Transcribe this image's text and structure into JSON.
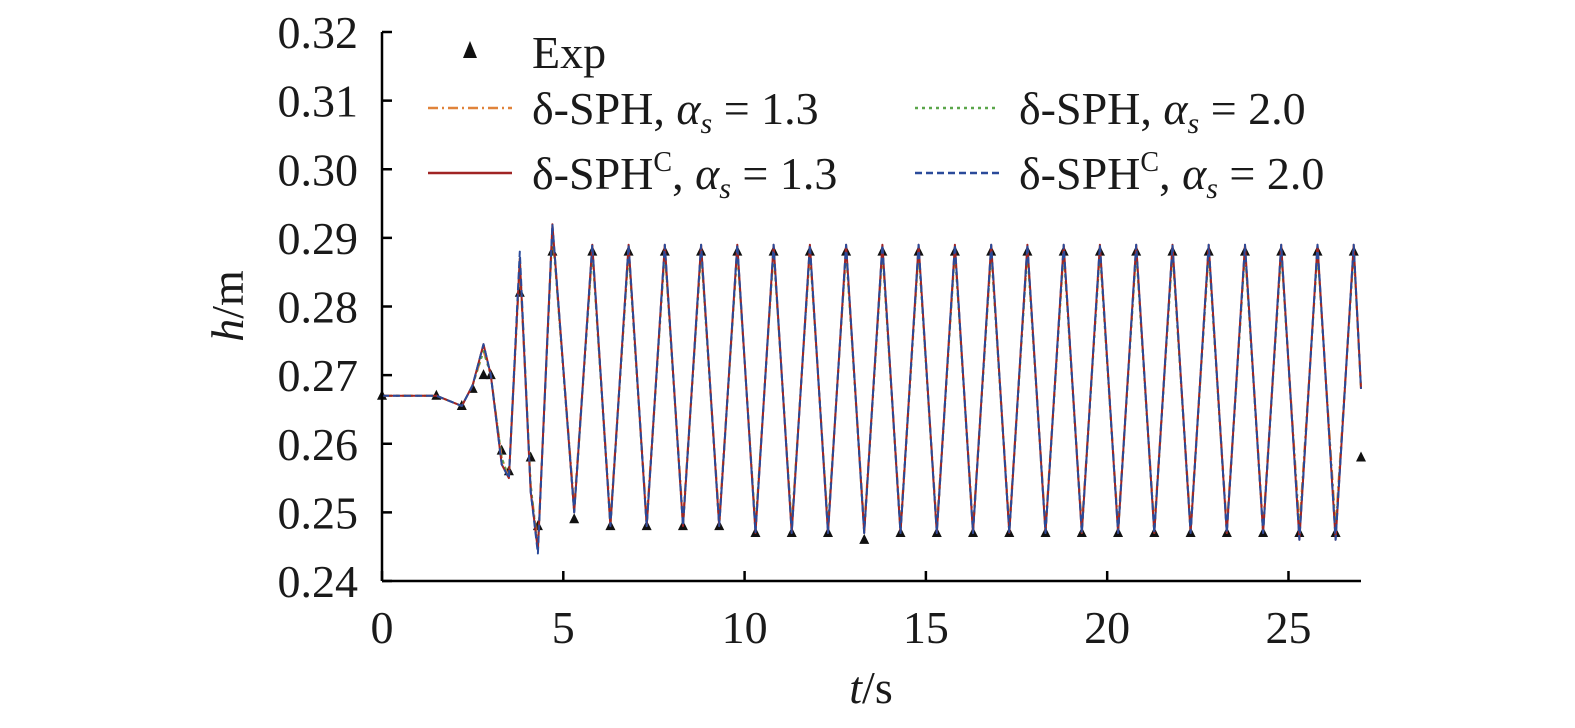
{
  "chart_data": {
    "type": "line",
    "title": "",
    "xlabel": {
      "var": "t",
      "unit": "/s"
    },
    "ylabel": {
      "var": "h",
      "unit": "/m"
    },
    "xlim": [
      0,
      27
    ],
    "ylim": [
      0.24,
      0.32
    ],
    "x_ticks": [
      0,
      5,
      10,
      15,
      20,
      25
    ],
    "x_tick_labels": [
      "0",
      "5",
      "10",
      "15",
      "20",
      "25"
    ],
    "y_ticks": [
      0.24,
      0.25,
      0.26,
      0.27,
      0.28,
      0.29,
      0.3,
      0.31,
      0.32
    ],
    "y_tick_labels": [
      "0.24",
      "0.25",
      "0.26",
      "0.27",
      "0.28",
      "0.29",
      "0.30",
      "0.31",
      "0.32"
    ],
    "grid": false,
    "legend_position": "top",
    "legend": [
      {
        "base": "Exp",
        "sup": "",
        "alpha": "",
        "eq": "",
        "style": "triangle",
        "color": "#111111"
      },
      {
        "base": "δ-SPH",
        "sup": "",
        "alpha": "α",
        "eq": " = 1.3",
        "style": "dashdot",
        "color": "#e0833a"
      },
      {
        "base": "δ-SPH",
        "sup": "",
        "alpha": "α",
        "eq": " = 2.0",
        "style": "dotted",
        "color": "#5aa64a"
      },
      {
        "base": "δ-SPH",
        "sup": "C",
        "alpha": "α",
        "eq": " = 1.3",
        "style": "solid",
        "color": "#a02424"
      },
      {
        "base": "δ-SPH",
        "sup": "C",
        "alpha": "α",
        "eq": " = 2.0",
        "style": "dashed",
        "color": "#2a4a9a"
      }
    ],
    "alpha_subscript": "s",
    "series": [
      {
        "name": "Exp",
        "marker": "triangle",
        "color": "#111111",
        "x": [
          0,
          1.5,
          2.2,
          2.5,
          2.8,
          3.0,
          3.3,
          3.5,
          3.8,
          4.1,
          4.3,
          4.7,
          5.3,
          5.8,
          6.3,
          6.8,
          7.3,
          7.8,
          8.3,
          8.8,
          9.3,
          9.8,
          10.3,
          10.8,
          11.3,
          11.8,
          12.3,
          12.8,
          13.3,
          13.8,
          14.3,
          14.8,
          15.3,
          15.8,
          16.3,
          16.8,
          17.3,
          17.8,
          18.3,
          18.8,
          19.3,
          19.8,
          20.3,
          20.8,
          21.3,
          21.8,
          22.3,
          22.8,
          23.3,
          23.8,
          24.3,
          24.8,
          25.3,
          25.8,
          26.3,
          26.8,
          27.0
        ],
        "y": [
          0.267,
          0.267,
          0.2655,
          0.268,
          0.27,
          0.27,
          0.259,
          0.256,
          0.282,
          0.258,
          0.248,
          0.288,
          0.249,
          0.288,
          0.248,
          0.288,
          0.248,
          0.288,
          0.248,
          0.288,
          0.248,
          0.288,
          0.247,
          0.288,
          0.247,
          0.288,
          0.247,
          0.288,
          0.246,
          0.288,
          0.247,
          0.288,
          0.247,
          0.288,
          0.247,
          0.288,
          0.247,
          0.288,
          0.247,
          0.288,
          0.247,
          0.288,
          0.247,
          0.288,
          0.247,
          0.288,
          0.247,
          0.288,
          0.247,
          0.288,
          0.247,
          0.288,
          0.247,
          0.288,
          0.247,
          0.288,
          0.258
        ]
      },
      {
        "name": "δ-SPH, α_s = 1.3",
        "line": "dashdot",
        "color": "#e0833a",
        "x": [
          0,
          1.5,
          2.2,
          2.5,
          2.8,
          3.0,
          3.3,
          3.5,
          3.8,
          4.1,
          4.3,
          4.7,
          5.3,
          5.8,
          6.3,
          6.8,
          7.3,
          7.8,
          8.3,
          8.8,
          9.3,
          9.8,
          10.3,
          10.8,
          11.3,
          11.8,
          12.3,
          12.8,
          13.3,
          13.8,
          14.3,
          14.8,
          15.3,
          15.8,
          16.3,
          16.8,
          17.3,
          17.8,
          18.3,
          18.8,
          19.3,
          19.8,
          20.3,
          20.8,
          21.3,
          21.8,
          22.3,
          22.8,
          23.3,
          23.8,
          24.3,
          24.8,
          25.3,
          25.8,
          26.3,
          26.8,
          27.0
        ],
        "y": [
          0.267,
          0.267,
          0.2655,
          0.2685,
          0.2735,
          0.27,
          0.258,
          0.255,
          0.286,
          0.254,
          0.245,
          0.291,
          0.251,
          0.288,
          0.249,
          0.288,
          0.249,
          0.288,
          0.249,
          0.288,
          0.249,
          0.288,
          0.248,
          0.288,
          0.248,
          0.288,
          0.248,
          0.288,
          0.248,
          0.288,
          0.248,
          0.288,
          0.248,
          0.288,
          0.248,
          0.288,
          0.248,
          0.288,
          0.248,
          0.288,
          0.248,
          0.288,
          0.248,
          0.288,
          0.248,
          0.288,
          0.248,
          0.288,
          0.248,
          0.288,
          0.248,
          0.288,
          0.248,
          0.288,
          0.248,
          0.288,
          0.268
        ]
      },
      {
        "name": "δ-SPH, α_s = 2.0",
        "line": "dotted",
        "color": "#5aa64a",
        "x": [
          0,
          1.5,
          2.2,
          2.5,
          2.8,
          3.0,
          3.3,
          3.5,
          3.8,
          4.1,
          4.3,
          4.7,
          5.3,
          5.8,
          6.3,
          6.8,
          7.3,
          7.8,
          8.3,
          8.8,
          9.3,
          9.8,
          10.3,
          10.8,
          11.3,
          11.8,
          12.3,
          12.8,
          13.3,
          13.8,
          14.3,
          14.8,
          15.3,
          15.8,
          16.3,
          16.8,
          17.3,
          17.8,
          18.3,
          18.8,
          19.3,
          19.8,
          20.3,
          20.8,
          21.3,
          21.8,
          22.3,
          22.8,
          23.3,
          23.8,
          24.3,
          24.8,
          25.3,
          25.8,
          26.3,
          26.8,
          27.0
        ],
        "y": [
          0.267,
          0.267,
          0.2655,
          0.2685,
          0.2735,
          0.27,
          0.258,
          0.255,
          0.287,
          0.254,
          0.2445,
          0.291,
          0.25,
          0.288,
          0.248,
          0.288,
          0.248,
          0.288,
          0.248,
          0.288,
          0.248,
          0.288,
          0.248,
          0.288,
          0.248,
          0.288,
          0.248,
          0.288,
          0.247,
          0.288,
          0.247,
          0.288,
          0.247,
          0.288,
          0.247,
          0.288,
          0.247,
          0.288,
          0.247,
          0.288,
          0.247,
          0.288,
          0.247,
          0.288,
          0.247,
          0.288,
          0.247,
          0.288,
          0.247,
          0.288,
          0.247,
          0.288,
          0.247,
          0.288,
          0.247,
          0.288,
          0.268
        ]
      },
      {
        "name": "δ-SPH^C, α_s = 1.3",
        "line": "solid",
        "color": "#a02424",
        "x": [
          0,
          1.5,
          2.2,
          2.5,
          2.8,
          3.0,
          3.3,
          3.5,
          3.8,
          4.1,
          4.3,
          4.7,
          5.3,
          5.8,
          6.3,
          6.8,
          7.3,
          7.8,
          8.3,
          8.8,
          9.3,
          9.8,
          10.3,
          10.8,
          11.3,
          11.8,
          12.3,
          12.8,
          13.3,
          13.8,
          14.3,
          14.8,
          15.3,
          15.8,
          16.3,
          16.8,
          17.3,
          17.8,
          18.3,
          18.8,
          19.3,
          19.8,
          20.3,
          20.8,
          21.3,
          21.8,
          22.3,
          22.8,
          23.3,
          23.8,
          24.3,
          24.8,
          25.3,
          25.8,
          26.3,
          26.8,
          27.0
        ],
        "y": [
          0.267,
          0.267,
          0.2655,
          0.2685,
          0.2745,
          0.27,
          0.257,
          0.255,
          0.287,
          0.253,
          0.2445,
          0.292,
          0.25,
          0.289,
          0.248,
          0.289,
          0.248,
          0.289,
          0.248,
          0.289,
          0.248,
          0.289,
          0.247,
          0.289,
          0.247,
          0.289,
          0.247,
          0.289,
          0.247,
          0.289,
          0.247,
          0.289,
          0.247,
          0.289,
          0.247,
          0.289,
          0.247,
          0.289,
          0.247,
          0.289,
          0.247,
          0.289,
          0.247,
          0.289,
          0.247,
          0.289,
          0.247,
          0.289,
          0.247,
          0.289,
          0.247,
          0.289,
          0.246,
          0.289,
          0.246,
          0.289,
          0.268
        ]
      },
      {
        "name": "δ-SPH^C, α_s = 2.0",
        "line": "dashed",
        "color": "#2a4a9a",
        "x": [
          0,
          1.5,
          2.2,
          2.5,
          2.8,
          3.0,
          3.3,
          3.5,
          3.8,
          4.1,
          4.3,
          4.7,
          5.3,
          5.8,
          6.3,
          6.8,
          7.3,
          7.8,
          8.3,
          8.8,
          9.3,
          9.8,
          10.3,
          10.8,
          11.3,
          11.8,
          12.3,
          12.8,
          13.3,
          13.8,
          14.3,
          14.8,
          15.3,
          15.8,
          16.3,
          16.8,
          17.3,
          17.8,
          18.3,
          18.8,
          19.3,
          19.8,
          20.3,
          20.8,
          21.3,
          21.8,
          22.3,
          22.8,
          23.3,
          23.8,
          24.3,
          24.8,
          25.3,
          25.8,
          26.3,
          26.8,
          27.0
        ],
        "y": [
          0.267,
          0.267,
          0.2655,
          0.2685,
          0.2745,
          0.27,
          0.257,
          0.255,
          0.288,
          0.253,
          0.244,
          0.292,
          0.25,
          0.289,
          0.248,
          0.289,
          0.248,
          0.289,
          0.248,
          0.289,
          0.248,
          0.289,
          0.247,
          0.289,
          0.247,
          0.289,
          0.247,
          0.289,
          0.247,
          0.289,
          0.247,
          0.289,
          0.247,
          0.289,
          0.247,
          0.289,
          0.247,
          0.289,
          0.247,
          0.289,
          0.247,
          0.289,
          0.247,
          0.289,
          0.247,
          0.289,
          0.247,
          0.289,
          0.247,
          0.289,
          0.247,
          0.289,
          0.246,
          0.289,
          0.246,
          0.289,
          0.268
        ]
      }
    ]
  }
}
